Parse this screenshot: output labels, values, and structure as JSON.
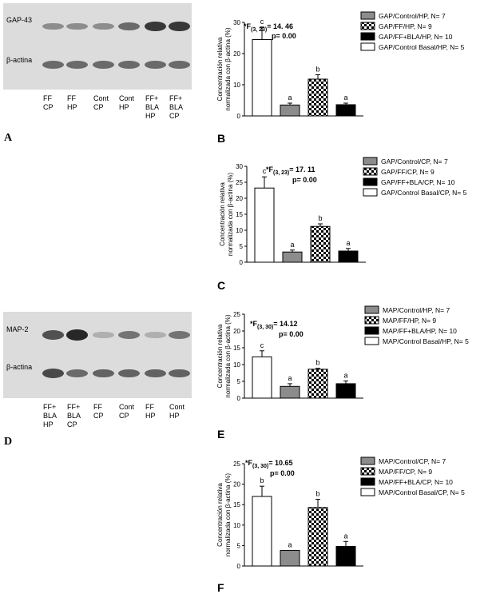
{
  "blots": [
    {
      "id": "A",
      "label": "A",
      "rows": [
        {
          "label": "GAP-43",
          "intensity": [
            0.35,
            0.35,
            0.35,
            0.55,
            0.85,
            0.85
          ]
        },
        {
          "label": "β-actina",
          "intensity": [
            0.55,
            0.55,
            0.55,
            0.55,
            0.55,
            0.55
          ]
        }
      ],
      "lanes": [
        [
          "FF",
          "CP"
        ],
        [
          "FF",
          "HP"
        ],
        [
          "Cont",
          "CP"
        ],
        [
          "Cont",
          "HP"
        ],
        [
          "FF+",
          "BLA",
          "HP"
        ],
        [
          "FF+",
          "BLA",
          "CP"
        ]
      ]
    },
    {
      "id": "D",
      "label": "D",
      "rows": [
        {
          "label": "MAP-2",
          "intensity": [
            0.7,
            0.95,
            0.15,
            0.5,
            0.15,
            0.5
          ]
        },
        {
          "label": "β-actina",
          "intensity": [
            0.75,
            0.55,
            0.6,
            0.6,
            0.6,
            0.6
          ]
        }
      ],
      "lanes": [
        [
          "FF+",
          "BLA",
          "HP"
        ],
        [
          "FF+",
          "BLA",
          "CP"
        ],
        [
          "FF",
          "CP"
        ],
        [
          "Cont",
          "CP"
        ],
        [
          "FF",
          "HP"
        ],
        [
          "Cont",
          "HP"
        ]
      ]
    }
  ],
  "chart_data": [
    {
      "panel": "B",
      "type": "bar",
      "stat": {
        "prefix": "*F",
        "sub": "(3, 23)",
        "value": "= 14. 46",
        "p": "p= 0.00"
      },
      "ylabel": [
        "Concentración relativa",
        "normalizada con β-actina (%)"
      ],
      "ylim": [
        0,
        30
      ],
      "yticks": [
        "0",
        "10",
        "20",
        "30"
      ],
      "values": [
        3.5,
        11.8,
        3.6,
        24.5
      ],
      "errors": [
        0.6,
        1.4,
        0.5,
        4.0
      ],
      "letters": [
        "a",
        "b",
        "a",
        "c"
      ],
      "series": [
        {
          "name": "GAP/Control/HP, N= 7",
          "fill": "gray"
        },
        {
          "name": "GAP/FF/HP, N= 9",
          "fill": "check"
        },
        {
          "name": "GAP/FF+BLA/HP, N= 10",
          "fill": "black"
        },
        {
          "name": "GAP/Control Basal/HP, N= 5",
          "fill": "white"
        }
      ]
    },
    {
      "panel": "C",
      "type": "bar",
      "stat": {
        "prefix": "*F",
        "sub": "(3, 23)",
        "value": "= 17. 11",
        "p": "p= 0.00"
      },
      "ylabel": [
        "Concentración relativa",
        "normalizada con β-actina (%)"
      ],
      "ylim": [
        0,
        30
      ],
      "yticks": [
        "0",
        "5",
        "10",
        "15",
        "20",
        "25",
        "30"
      ],
      "values": [
        3.2,
        11.2,
        3.5,
        23.2
      ],
      "errors": [
        0.6,
        0.8,
        0.8,
        3.5
      ],
      "letters": [
        "a",
        "b",
        "a",
        "c"
      ],
      "series": [
        {
          "name": "GAP/Control/CP, N= 7",
          "fill": "gray"
        },
        {
          "name": "GAP/FF/CP, N= 9",
          "fill": "check"
        },
        {
          "name": "GAP/FF+BLA/CP, N= 10",
          "fill": "black"
        },
        {
          "name": "GAP/Control Basal/CP, N= 5",
          "fill": "white"
        }
      ]
    },
    {
      "panel": "E",
      "type": "bar",
      "stat": {
        "prefix": "*F",
        "sub": "(3, 30)",
        "value": "= 14.12",
        "p": "p= 0.00"
      },
      "ylabel": [
        "Concentración relativa",
        "normalizada con β-actina (%)"
      ],
      "ylim": [
        0,
        25
      ],
      "yticks": [
        "0",
        "5",
        "10",
        "15",
        "20",
        "25"
      ],
      "values": [
        3.5,
        8.6,
        4.3,
        12.3
      ],
      "errors": [
        0.8,
        0.3,
        0.8,
        1.8
      ],
      "letters": [
        "a",
        "b",
        "a",
        "c"
      ],
      "series": [
        {
          "name": "MAP/Control/HP, N= 7",
          "fill": "gray"
        },
        {
          "name": "MAP/FF/HP, N= 9",
          "fill": "check"
        },
        {
          "name": "MAP/FF+BLA/HP, N= 10",
          "fill": "black"
        },
        {
          "name": "MAP/Control Basal/HP, N= 5",
          "fill": "white"
        }
      ]
    },
    {
      "panel": "F",
      "type": "bar",
      "stat": {
        "prefix": "*F",
        "sub": "(3, 30)",
        "value": "= 10.65",
        "p": "p= 0.00"
      },
      "ylabel": [
        "Concentración relativa",
        "normalizada con β-actina (%)"
      ],
      "ylim": [
        0,
        25
      ],
      "yticks": [
        "0",
        "5",
        "10",
        "15",
        "20",
        "25"
      ],
      "values": [
        3.8,
        14.3,
        4.8,
        17.0
      ],
      "errors": [
        0.0,
        2.0,
        1.2,
        2.5
      ],
      "letters": [
        "a",
        "b",
        "a",
        "b"
      ],
      "series": [
        {
          "name": "MAP/Control/CP, N= 7",
          "fill": "gray"
        },
        {
          "name": "MAP/FF/CP, N= 9",
          "fill": "check"
        },
        {
          "name": "MAP/FF+BLA/CP, N= 10",
          "fill": "black"
        },
        {
          "name": "MAP/Control Basal/CP, N= 5",
          "fill": "white"
        }
      ]
    }
  ]
}
